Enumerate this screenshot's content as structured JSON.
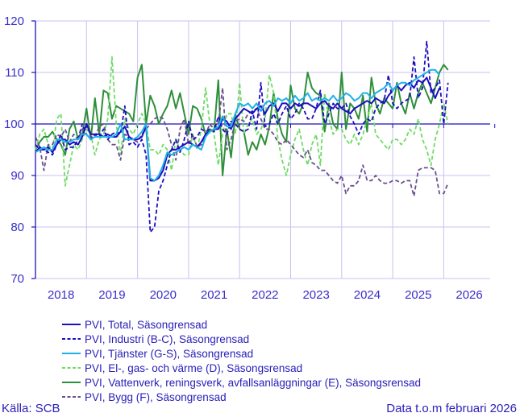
{
  "chart_data": {
    "type": "line",
    "title": "",
    "xlabel": "",
    "ylabel": "",
    "x_start": "2018-01",
    "x_frequency": "monthly",
    "xlim": [
      "2018-01",
      "2026-12"
    ],
    "ylim": [
      70,
      120
    ],
    "y_ticks": [
      70,
      80,
      90,
      100,
      110,
      120
    ],
    "x_tick_labels": [
      "2018",
      "2019",
      "2020",
      "2021",
      "2022",
      "2023",
      "2024",
      "2025",
      "2026"
    ],
    "reference_line": 100,
    "grid": true,
    "legend_placement": "bottom",
    "series": [
      {
        "name": "PVI, Total, Säsongrensad",
        "color": "#1c0fbf",
        "dash": "solid",
        "values": [
          94.5,
          95.5,
          95,
          95.5,
          94.5,
          96,
          97,
          97,
          96,
          96.5,
          96,
          97.5,
          100,
          98,
          98,
          98,
          97.5,
          98,
          97.5,
          97.5,
          98.5,
          99.5,
          97.5,
          97,
          97,
          97.5,
          99.5,
          89,
          89,
          89.5,
          91,
          94,
          95,
          95,
          95.5,
          96,
          96.5,
          96,
          95.5,
          96.5,
          98,
          98.5,
          99,
          99,
          101,
          100.5,
          99,
          101,
          102,
          103,
          102.5,
          102,
          103,
          103.5,
          102,
          103.5,
          104,
          102.5,
          104,
          104,
          103,
          104,
          103.5,
          104,
          104,
          103.5,
          103,
          104,
          104.5,
          103.5,
          103,
          104,
          103,
          102.5,
          102,
          103,
          103.5,
          104,
          104.5,
          104,
          105,
          104.5,
          104,
          105.5,
          106.5,
          107.5,
          106.5,
          107.5,
          108,
          107,
          108.5,
          108,
          109,
          107,
          105,
          107
        ]
      },
      {
        "name": "PVI, Industri (B-C), Säsongrensad",
        "color": "#1c0fbf",
        "dash": "dashed",
        "values": [
          96,
          95,
          95,
          94.5,
          94,
          96,
          98,
          95,
          95.5,
          95.5,
          97,
          100,
          98,
          97,
          98,
          97.5,
          99,
          97,
          98,
          98.5,
          98,
          103.5,
          96,
          96.5,
          95.5,
          97,
          94,
          79,
          80,
          87,
          89,
          92,
          95,
          97,
          94.5,
          97,
          100.5,
          97,
          97.5,
          99,
          98.5,
          99,
          98.5,
          101.5,
          99,
          98,
          100.5,
          100,
          99,
          98.5,
          99,
          102.5,
          99,
          108,
          99.5,
          100,
          102,
          100,
          102,
          103.5,
          101,
          102,
          104,
          103,
          101,
          101,
          103,
          106.5,
          100,
          102,
          104,
          103,
          103,
          104,
          101.5,
          100,
          98,
          100,
          101,
          100.5,
          103,
          104,
          104.5,
          109.5,
          104,
          103,
          104,
          104.5,
          105,
          113,
          105,
          107,
          116,
          106,
          107,
          108.5,
          100,
          108
        ]
      },
      {
        "name": "PVI, Tjänster (G-S), Säsongrensad",
        "color": "#1fb1e8",
        "dash": "solid",
        "values": [
          94.5,
          95,
          95.5,
          95,
          95,
          97,
          97,
          96.5,
          96.5,
          97,
          97,
          98,
          98,
          97,
          97.5,
          97.5,
          97.5,
          97.5,
          97.5,
          98,
          100,
          97,
          97,
          97,
          97.5,
          98.5,
          100,
          89.5,
          89,
          90,
          92,
          94.5,
          94,
          94.5,
          95,
          95.5,
          95,
          96,
          95.5,
          95,
          97.5,
          98.5,
          99,
          99.5,
          101.5,
          99.5,
          99.5,
          102,
          104,
          103.5,
          104,
          103,
          104,
          102.5,
          104,
          104.5,
          103.5,
          105,
          104.5,
          105,
          104,
          105.5,
          104.5,
          105,
          106,
          104.5,
          105,
          104.5,
          105,
          104.5,
          105.5,
          104.5,
          105,
          106,
          105.5,
          104.5,
          105,
          106,
          106,
          105,
          106,
          106.5,
          107,
          108,
          106.5,
          107.5,
          108,
          108,
          107.5,
          108.5,
          109,
          109.5,
          110,
          110.5,
          110.5,
          109.5
        ]
      },
      {
        "name": "PVI, El-, gas- och värme (D), Säsongsrensad",
        "color": "#6fdc66",
        "dash": "dashed",
        "values": [
          95,
          98,
          99,
          96,
          95,
          101,
          102,
          88,
          92,
          96,
          95,
          97,
          99,
          98,
          94,
          97,
          98,
          101,
          113,
          100,
          94,
          101,
          99,
          98,
          100,
          102,
          100,
          95,
          95,
          94,
          96,
          95,
          91,
          97,
          95,
          94,
          94,
          98,
          95,
          99,
          107,
          100,
          98,
          92,
          98,
          102,
          102,
          98,
          108,
          98,
          100,
          101,
          98,
          99,
          101,
          109.5,
          106,
          97,
          93,
          90,
          94,
          97,
          99,
          95,
          92,
          96,
          98,
          92,
          106,
          101,
          98,
          99,
          99,
          97,
          96,
          98,
          96,
          98,
          101,
          104,
          98,
          97,
          96,
          95,
          97,
          97,
          96,
          97,
          99,
          98,
          101,
          97,
          95,
          92,
          97,
          100,
          104,
          100
        ]
      },
      {
        "name": "PVI, Vattenverk, reningsverk, avfallsanläggningar (E), Säsongsrensad",
        "color": "#2e8f3a",
        "dash": "solid",
        "values": [
          95,
          96.5,
          97.5,
          97.5,
          98.5,
          97,
          96,
          94,
          99,
          100.5,
          97,
          98,
          103,
          97,
          105,
          98,
          106.5,
          106,
          101,
          103.5,
          103,
          102.5,
          102,
          100.5,
          109,
          111.5,
          100,
          105.5,
          103.5,
          100,
          102,
          103.5,
          106.5,
          103,
          106,
          102,
          98,
          103.5,
          103,
          101,
          98,
          99,
          98.5,
          108.5,
          90,
          99,
          93.5,
          102,
          99,
          98.5,
          94,
          96.5,
          95,
          98,
          96,
          99.5,
          106,
          101,
          98,
          96.5,
          107.5,
          103,
          102,
          104,
          110,
          107,
          106,
          105.5,
          98.5,
          104,
          100,
          99,
          110,
          99,
          104,
          103,
          101,
          105.5,
          98.5,
          109,
          104,
          102,
          105,
          104,
          103,
          108,
          104,
          102,
          106,
          103,
          106,
          108,
          106,
          104,
          107,
          110,
          111.5,
          110.5
        ]
      },
      {
        "name": "PVI, Bygg (F), Säsongrensad",
        "color": "#6b4f8c",
        "dash": "dashed",
        "values": [
          97.5,
          95.5,
          91,
          96,
          96,
          98,
          97.5,
          99,
          96.5,
          98,
          97,
          99,
          100,
          97.5,
          97.5,
          99.5,
          100,
          97,
          96,
          96,
          93,
          98,
          97.5,
          97,
          96.5,
          98,
          99,
          100,
          101,
          101.5,
          101,
          99,
          96,
          93,
          99,
          101,
          96,
          98,
          95.5,
          96,
          98,
          100,
          99,
          100,
          107,
          95,
          97,
          100.5,
          101,
          100.5,
          102,
          102.5,
          103,
          101,
          99,
          99,
          98,
          96.5,
          96,
          97,
          96,
          95,
          94,
          93.5,
          95,
          92.5,
          92,
          91,
          91,
          90,
          89,
          88.5,
          90,
          86.5,
          88,
          88,
          89,
          92,
          89,
          89,
          90,
          89,
          88.5,
          88.5,
          89,
          89,
          88.5,
          89,
          89,
          86,
          91,
          91.5,
          91.5,
          91.5,
          91,
          86.5,
          86.5,
          88.5
        ]
      }
    ]
  },
  "footer": {
    "source": "Källa: SCB",
    "data_through": "Data t.o.m februari 2026"
  },
  "colors": {
    "axis": "#1c0fbf",
    "grid": "#c9c2f0",
    "text": "#2a20b8"
  }
}
